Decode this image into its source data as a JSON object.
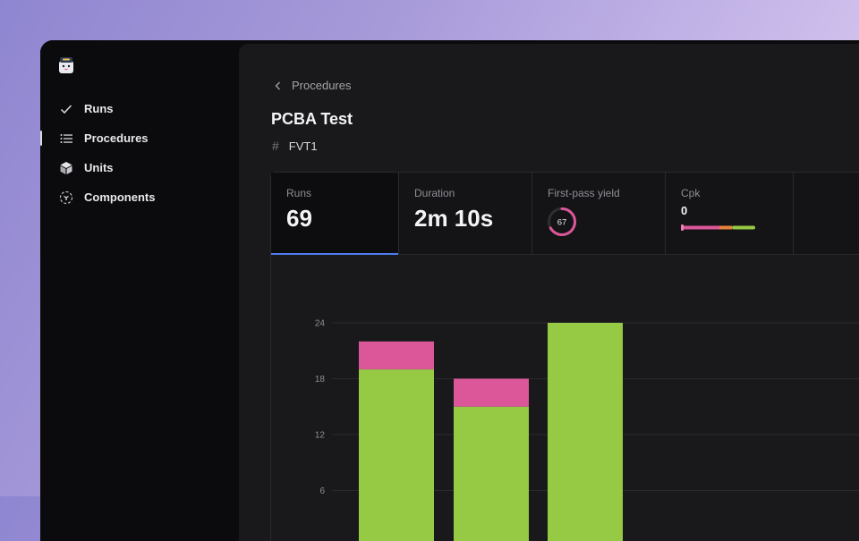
{
  "sidebar": {
    "items": [
      {
        "label": "Runs",
        "icon": "check-icon"
      },
      {
        "label": "Procedures",
        "icon": "list-icon"
      },
      {
        "label": "Units",
        "icon": "cube-icon"
      },
      {
        "label": "Components",
        "icon": "component-icon"
      }
    ],
    "active": "Procedures"
  },
  "breadcrumb": {
    "label": "Procedures"
  },
  "page": {
    "title": "PCBA Test",
    "tag": "FVT1"
  },
  "stats": {
    "runs": {
      "label": "Runs",
      "value": "69"
    },
    "duration": {
      "label": "Duration",
      "value": "2m 10s"
    },
    "yield": {
      "label": "First-pass yield",
      "value": "67"
    },
    "cpk": {
      "label": "Cpk",
      "value": "0"
    }
  },
  "colors": {
    "pass": "#96c944",
    "fail": "#dc579a",
    "accent": "#4e7cf0",
    "cpk_mid": "#e8813c"
  },
  "chart_data": {
    "type": "bar",
    "stacked": true,
    "y_ticks": [
      24,
      18,
      12,
      6
    ],
    "ylim": [
      0,
      24
    ],
    "series": [
      {
        "values": [
          19,
          15,
          24
        ]
      },
      {
        "values": [
          3,
          3,
          0
        ]
      }
    ]
  }
}
